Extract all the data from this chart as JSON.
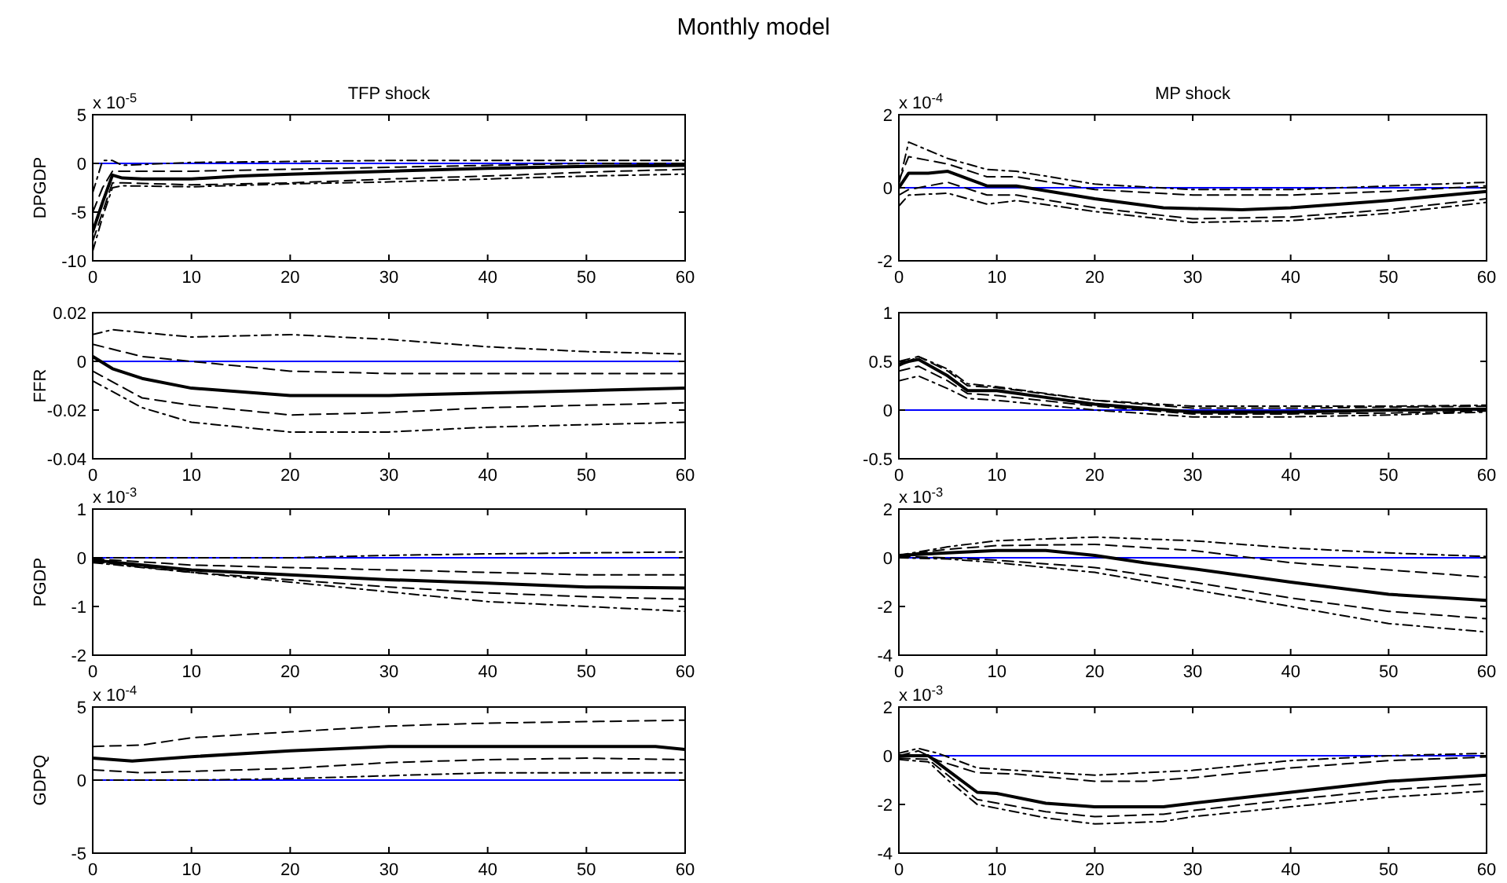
{
  "chart_data": [
    {
      "type": "line",
      "title": "TFP shock",
      "ylabel": "DPGDP",
      "annotations": [
        "Monthly model",
        "x 10$^{-5}$"
      ],
      "xlim": [
        0,
        60
      ],
      "xticks": [
        0,
        10,
        20,
        30,
        40,
        50,
        60
      ],
      "ylim": [
        -10,
        5
      ],
      "yticks": [
        5,
        0,
        -5,
        -10
      ],
      "ref_lines": [
        {
          "axis": "y",
          "value": 0,
          "color": "#0000ff"
        }
      ],
      "series": [
        {
          "color": "#000000",
          "line_style": "solid",
          "x": [
            0,
            1,
            2,
            3,
            5,
            10,
            15,
            20,
            30,
            40,
            50,
            60
          ],
          "values": [
            -7,
            -4,
            -1.2,
            -1.5,
            -1.6,
            -1.6,
            -1.3,
            -1.1,
            -0.8,
            -0.5,
            -0.3,
            -0.2
          ]
        },
        {
          "color": "#000000",
          "line_style": "dashed",
          "x": [
            0,
            1,
            2,
            3,
            5,
            10,
            20,
            30,
            40,
            50,
            60
          ],
          "values": [
            -5,
            -2.5,
            -0.8,
            -0.8,
            -0.8,
            -0.8,
            -0.6,
            -0.4,
            -0.2,
            0,
            0
          ]
        },
        {
          "color": "#000000",
          "line_style": "dashed",
          "x": [
            0,
            1,
            2,
            3,
            10,
            20,
            30,
            40,
            50,
            60
          ],
          "values": [
            -8,
            -5,
            -2,
            -2,
            -2.2,
            -2,
            -1.6,
            -1.3,
            -0.9,
            -0.6
          ]
        },
        {
          "color": "#000000",
          "line_style": "dotted",
          "x": [
            0,
            1,
            2,
            3,
            10,
            20,
            30,
            40,
            50,
            60
          ],
          "values": [
            -3,
            0.3,
            0.3,
            -0.2,
            0.1,
            0.2,
            0.3,
            0.3,
            0.3,
            0.3
          ]
        },
        {
          "color": "#000000",
          "line_style": "dotted",
          "x": [
            0,
            1,
            2,
            3,
            10,
            20,
            30,
            40,
            50,
            60
          ],
          "values": [
            -9,
            -5.5,
            -2.5,
            -2.3,
            -2.4,
            -2.1,
            -1.9,
            -1.6,
            -1.3,
            -1.1
          ]
        }
      ]
    },
    {
      "type": "line",
      "title": "MP shock",
      "annotations": [
        "x 10$^{-4}$"
      ],
      "xlim": [
        0,
        60
      ],
      "xticks": [
        0,
        10,
        20,
        30,
        40,
        50,
        60
      ],
      "ylim": [
        -2,
        2
      ],
      "yticks": [
        2,
        0,
        -2
      ],
      "ref_lines": [
        {
          "axis": "y",
          "value": 0,
          "color": "#0000ff"
        }
      ],
      "series": [
        {
          "color": "#000000",
          "line_style": "solid",
          "x": [
            0,
            1,
            3,
            5,
            9,
            12,
            20,
            27,
            35,
            40,
            50,
            60
          ],
          "values": [
            0,
            0.4,
            0.4,
            0.45,
            0.05,
            0.05,
            -0.3,
            -0.55,
            -0.6,
            -0.55,
            -0.35,
            -0.1
          ]
        },
        {
          "color": "#000000",
          "line_style": "dashed",
          "x": [
            0,
            1,
            5,
            9,
            12,
            20,
            30,
            40,
            50,
            60
          ],
          "values": [
            0.2,
            0.85,
            0.65,
            0.3,
            0.3,
            -0.05,
            -0.2,
            -0.2,
            -0.1,
            0.05
          ]
        },
        {
          "color": "#000000",
          "line_style": "dashed",
          "x": [
            0,
            1,
            5,
            9,
            12,
            20,
            30,
            40,
            50,
            60
          ],
          "values": [
            -0.2,
            -0.05,
            0.15,
            -0.2,
            -0.2,
            -0.55,
            -0.85,
            -0.8,
            -0.6,
            -0.3
          ]
        },
        {
          "color": "#000000",
          "line_style": "dotted",
          "x": [
            0,
            1,
            5,
            9,
            12,
            20,
            30,
            40,
            50,
            60
          ],
          "values": [
            0.1,
            1.25,
            0.8,
            0.5,
            0.45,
            0.1,
            -0.05,
            -0.05,
            0.05,
            0.15
          ]
        },
        {
          "color": "#000000",
          "line_style": "dotted",
          "x": [
            0,
            1,
            5,
            9,
            12,
            20,
            30,
            40,
            50,
            60
          ],
          "values": [
            -0.5,
            -0.2,
            -0.15,
            -0.45,
            -0.35,
            -0.65,
            -0.95,
            -0.9,
            -0.7,
            -0.4
          ]
        }
      ]
    },
    {
      "type": "line",
      "ylabel": "FFR",
      "xlim": [
        0,
        60
      ],
      "xticks": [
        0,
        10,
        20,
        30,
        40,
        50,
        60
      ],
      "ylim": [
        -0.04,
        0.02
      ],
      "yticks": [
        0.02,
        0,
        -0.02,
        -0.04
      ],
      "ref_lines": [
        {
          "axis": "y",
          "value": 0,
          "color": "#0000ff"
        }
      ],
      "series": [
        {
          "color": "#000000",
          "line_style": "solid",
          "x": [
            0,
            2,
            5,
            10,
            20,
            30,
            40,
            50,
            60
          ],
          "values": [
            0.002,
            -0.003,
            -0.007,
            -0.011,
            -0.014,
            -0.014,
            -0.013,
            -0.012,
            -0.011
          ]
        },
        {
          "color": "#000000",
          "line_style": "dashed",
          "x": [
            0,
            5,
            10,
            20,
            30,
            40,
            60
          ],
          "values": [
            0.007,
            0.002,
            0,
            -0.004,
            -0.005,
            -0.005,
            -0.005
          ]
        },
        {
          "color": "#000000",
          "line_style": "dashed",
          "x": [
            0,
            5,
            10,
            20,
            30,
            40,
            50,
            60
          ],
          "values": [
            -0.004,
            -0.015,
            -0.018,
            -0.022,
            -0.021,
            -0.019,
            -0.018,
            -0.017
          ]
        },
        {
          "color": "#000000",
          "line_style": "dotted",
          "x": [
            0,
            2,
            10,
            20,
            30,
            40,
            50,
            60
          ],
          "values": [
            0.011,
            0.013,
            0.01,
            0.011,
            0.009,
            0.006,
            0.004,
            0.003
          ]
        },
        {
          "color": "#000000",
          "line_style": "dotted",
          "x": [
            0,
            5,
            10,
            20,
            30,
            40,
            50,
            60
          ],
          "values": [
            -0.008,
            -0.019,
            -0.025,
            -0.029,
            -0.029,
            -0.027,
            -0.026,
            -0.025
          ]
        }
      ]
    },
    {
      "type": "line",
      "xlim": [
        0,
        60
      ],
      "xticks": [
        0,
        10,
        20,
        30,
        40,
        50,
        60
      ],
      "ylim": [
        -0.5,
        1
      ],
      "yticks": [
        1,
        0.5,
        0,
        -0.5
      ],
      "ref_lines": [
        {
          "axis": "y",
          "value": 0,
          "color": "#0000ff"
        }
      ],
      "series": [
        {
          "color": "#000000",
          "line_style": "solid",
          "x": [
            0,
            1,
            2,
            5,
            7,
            10,
            15,
            20,
            30,
            40,
            50,
            60
          ],
          "values": [
            0.47,
            0.5,
            0.52,
            0.35,
            0.2,
            0.2,
            0.13,
            0.06,
            -0.02,
            -0.02,
            0,
            0.01
          ]
        },
        {
          "color": "#000000",
          "line_style": "dashed",
          "x": [
            0,
            2,
            5,
            7,
            10,
            20,
            30,
            40,
            50,
            60
          ],
          "values": [
            0.5,
            0.55,
            0.4,
            0.25,
            0.23,
            0.1,
            0.02,
            0.02,
            0.03,
            0.04
          ]
        },
        {
          "color": "#000000",
          "line_style": "dashed",
          "x": [
            0,
            2,
            5,
            7,
            10,
            20,
            30,
            40,
            50,
            60
          ],
          "values": [
            0.4,
            0.45,
            0.3,
            0.17,
            0.15,
            0.04,
            -0.04,
            -0.04,
            -0.03,
            -0.01
          ]
        },
        {
          "color": "#000000",
          "line_style": "dotted",
          "x": [
            0,
            2,
            5,
            7,
            10,
            20,
            30,
            40,
            50,
            60
          ],
          "values": [
            0.45,
            0.55,
            0.42,
            0.27,
            0.24,
            0.1,
            0.04,
            0.04,
            0.04,
            0.05
          ]
        },
        {
          "color": "#000000",
          "line_style": "dotted",
          "x": [
            0,
            2,
            5,
            7,
            10,
            20,
            30,
            40,
            50,
            60
          ],
          "values": [
            0.3,
            0.35,
            0.22,
            0.12,
            0.1,
            0,
            -0.07,
            -0.07,
            -0.05,
            -0.02
          ]
        }
      ]
    },
    {
      "type": "line",
      "ylabel": "PGDP",
      "annotations": [
        "x 10$^{-3}$"
      ],
      "xlim": [
        0,
        60
      ],
      "xticks": [
        0,
        10,
        20,
        30,
        40,
        50,
        60
      ],
      "ylim": [
        -2,
        1
      ],
      "yticks": [
        1,
        0,
        -1,
        -2
      ],
      "ref_lines": [
        {
          "axis": "y",
          "value": 0,
          "color": "#0000ff"
        }
      ],
      "series": [
        {
          "color": "#000000",
          "line_style": "solid",
          "x": [
            0,
            10,
            20,
            30,
            40,
            50,
            60
          ],
          "values": [
            -0.05,
            -0.25,
            -0.35,
            -0.45,
            -0.52,
            -0.6,
            -0.62
          ]
        },
        {
          "color": "#000000",
          "line_style": "dashed",
          "x": [
            0,
            10,
            20,
            30,
            40,
            50,
            60
          ],
          "values": [
            -0.02,
            -0.15,
            -0.2,
            -0.25,
            -0.3,
            -0.35,
            -0.35
          ]
        },
        {
          "color": "#000000",
          "line_style": "dashed",
          "x": [
            0,
            10,
            20,
            30,
            40,
            50,
            60
          ],
          "values": [
            -0.08,
            -0.3,
            -0.45,
            -0.6,
            -0.72,
            -0.8,
            -0.85
          ]
        },
        {
          "color": "#000000",
          "line_style": "dotted",
          "x": [
            0,
            10,
            20,
            30,
            40,
            50,
            60
          ],
          "values": [
            0,
            0,
            0,
            0.05,
            0.08,
            0.1,
            0.12
          ]
        },
        {
          "color": "#000000",
          "line_style": "dotted",
          "x": [
            0,
            10,
            20,
            30,
            40,
            50,
            60
          ],
          "values": [
            -0.1,
            -0.3,
            -0.5,
            -0.7,
            -0.9,
            -1,
            -1.1
          ]
        }
      ]
    },
    {
      "type": "line",
      "annotations": [
        "x 10$^{-3}$"
      ],
      "xlim": [
        0,
        60
      ],
      "xticks": [
        0,
        10,
        20,
        30,
        40,
        50,
        60
      ],
      "ylim": [
        -4,
        2
      ],
      "yticks": [
        2,
        0,
        -2,
        -4
      ],
      "ref_lines": [
        {
          "axis": "y",
          "value": 0,
          "color": "#0000ff"
        }
      ],
      "series": [
        {
          "color": "#000000",
          "line_style": "solid",
          "x": [
            0,
            5,
            10,
            15,
            20,
            25,
            30,
            40,
            50,
            60
          ],
          "values": [
            0.1,
            0.2,
            0.3,
            0.3,
            0.1,
            -0.2,
            -0.45,
            -1,
            -1.5,
            -1.75
          ]
        },
        {
          "color": "#000000",
          "line_style": "dashed",
          "x": [
            0,
            5,
            10,
            20,
            30,
            40,
            50,
            60
          ],
          "values": [
            0.1,
            0.35,
            0.5,
            0.55,
            0.3,
            -0.2,
            -0.5,
            -0.8
          ]
        },
        {
          "color": "#000000",
          "line_style": "dashed",
          "x": [
            0,
            5,
            10,
            20,
            30,
            40,
            50,
            60
          ],
          "values": [
            0.05,
            0,
            -0.1,
            -0.4,
            -1,
            -1.65,
            -2.2,
            -2.5
          ]
        },
        {
          "color": "#000000",
          "line_style": "dotted",
          "x": [
            0,
            5,
            10,
            20,
            30,
            40,
            50,
            60
          ],
          "values": [
            0.1,
            0.45,
            0.7,
            0.85,
            0.7,
            0.4,
            0.2,
            0.05
          ]
        },
        {
          "color": "#000000",
          "line_style": "dotted",
          "x": [
            0,
            5,
            10,
            20,
            30,
            40,
            50,
            60
          ],
          "values": [
            0,
            -0.05,
            -0.2,
            -0.6,
            -1.3,
            -2,
            -2.7,
            -3.05
          ]
        }
      ]
    },
    {
      "type": "line",
      "ylabel": "GDPQ",
      "annotations": [
        "x 10$^{-4}$"
      ],
      "xlim": [
        0,
        60
      ],
      "xticks": [
        0,
        10,
        20,
        30,
        40,
        50,
        60
      ],
      "ylim": [
        -5,
        5
      ],
      "yticks": [
        5,
        0,
        -5
      ],
      "ref_lines": [
        {
          "axis": "y",
          "value": 0,
          "color": "#0000ff"
        }
      ],
      "series": [
        {
          "color": "#000000",
          "line_style": "solid",
          "x": [
            0,
            4,
            10,
            20,
            30,
            40,
            50,
            57,
            60
          ],
          "values": [
            1.5,
            1.3,
            1.6,
            2,
            2.3,
            2.3,
            2.3,
            2.3,
            2.1
          ]
        },
        {
          "color": "#000000",
          "line_style": "dashed",
          "x": [
            0,
            5,
            10,
            20,
            30,
            40,
            50,
            60
          ],
          "values": [
            2.3,
            2.4,
            2.9,
            3.3,
            3.7,
            3.9,
            4,
            4.1
          ]
        },
        {
          "color": "#000000",
          "line_style": "dashed",
          "x": [
            0,
            5,
            10,
            20,
            30,
            40,
            50,
            60
          ],
          "values": [
            0.7,
            0.5,
            0.6,
            0.8,
            1.2,
            1.4,
            1.5,
            1.4
          ]
        },
        {
          "color": "#000000",
          "line_style": "dotted",
          "x": [
            0,
            10,
            20,
            30,
            40,
            50,
            60
          ],
          "values": [
            0,
            0,
            0.1,
            0.3,
            0.5,
            0.5,
            0.5
          ]
        }
      ]
    },
    {
      "type": "line",
      "annotations": [
        "x 10$^{-3}$"
      ],
      "xlim": [
        0,
        60
      ],
      "xticks": [
        0,
        10,
        20,
        30,
        40,
        50,
        60
      ],
      "ylim": [
        -4,
        2
      ],
      "yticks": [
        2,
        0,
        -2,
        -4
      ],
      "ref_lines": [
        {
          "axis": "y",
          "value": 0,
          "color": "#0000ff"
        }
      ],
      "series": [
        {
          "color": "#000000",
          "line_style": "solid",
          "x": [
            0,
            3,
            5,
            8,
            10,
            15,
            20,
            27,
            30,
            40,
            50,
            60
          ],
          "values": [
            0,
            0,
            -0.6,
            -1.5,
            -1.55,
            -1.95,
            -2.1,
            -2.1,
            -1.95,
            -1.5,
            -1.05,
            -0.8
          ]
        },
        {
          "color": "#000000",
          "line_style": "dashed",
          "x": [
            0,
            2,
            4,
            8,
            12,
            20,
            25,
            30,
            40,
            50,
            60
          ],
          "values": [
            0,
            0.2,
            -0.2,
            -0.7,
            -0.75,
            -1.05,
            -1.05,
            -0.9,
            -0.5,
            -0.2,
            -0.05
          ]
        },
        {
          "color": "#000000",
          "line_style": "dashed",
          "x": [
            0,
            3,
            5,
            8,
            15,
            20,
            27,
            30,
            40,
            50,
            60
          ],
          "values": [
            -0.1,
            -0.15,
            -0.8,
            -1.8,
            -2.3,
            -2.5,
            -2.4,
            -2.25,
            -1.8,
            -1.4,
            -1.15
          ]
        },
        {
          "color": "#000000",
          "line_style": "dotted",
          "x": [
            0,
            2,
            4,
            8,
            20,
            30,
            40,
            50,
            60
          ],
          "values": [
            0.1,
            0.3,
            0.1,
            -0.5,
            -0.8,
            -0.6,
            -0.2,
            0,
            0.1
          ]
        },
        {
          "color": "#000000",
          "line_style": "dotted",
          "x": [
            0,
            3,
            5,
            8,
            15,
            20,
            27,
            30,
            40,
            50,
            60
          ],
          "values": [
            -0.15,
            -0.25,
            -1,
            -2,
            -2.55,
            -2.8,
            -2.7,
            -2.5,
            -2.1,
            -1.7,
            -1.45
          ]
        }
      ]
    }
  ]
}
